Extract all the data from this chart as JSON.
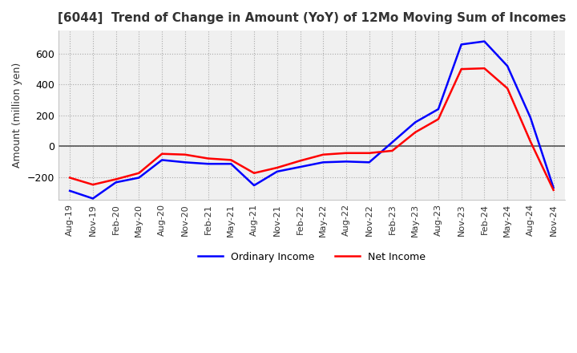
{
  "title": "[6044]  Trend of Change in Amount (YoY) of 12Mo Moving Sum of Incomes",
  "ylabel": "Amount (million yen)",
  "ylim": [
    -350,
    750
  ],
  "yticks": [
    -200,
    0,
    200,
    400,
    600
  ],
  "background_color": "#ffffff",
  "plot_bg_color": "#f0f0f0",
  "grid_color": "#aaaaaa",
  "ordinary_income_color": "#0000ff",
  "net_income_color": "#ff0000",
  "x_labels": [
    "Aug-19",
    "Nov-19",
    "Feb-20",
    "May-20",
    "Aug-20",
    "Nov-20",
    "Feb-21",
    "May-21",
    "Aug-21",
    "Nov-21",
    "Feb-22",
    "May-22",
    "Aug-22",
    "Nov-22",
    "Feb-23",
    "May-23",
    "Aug-23",
    "Nov-23",
    "Feb-24",
    "May-24",
    "Aug-24",
    "Nov-24"
  ],
  "ordinary_income": [
    -290,
    -340,
    -235,
    -205,
    -90,
    -105,
    -115,
    -115,
    -255,
    -165,
    -135,
    -105,
    -100,
    -105,
    25,
    155,
    240,
    660,
    680,
    520,
    185,
    -270
  ],
  "net_income": [
    -205,
    -250,
    -215,
    -175,
    -50,
    -55,
    -80,
    -90,
    -175,
    -140,
    -95,
    -55,
    -45,
    -45,
    -30,
    90,
    175,
    500,
    505,
    375,
    30,
    -285
  ]
}
